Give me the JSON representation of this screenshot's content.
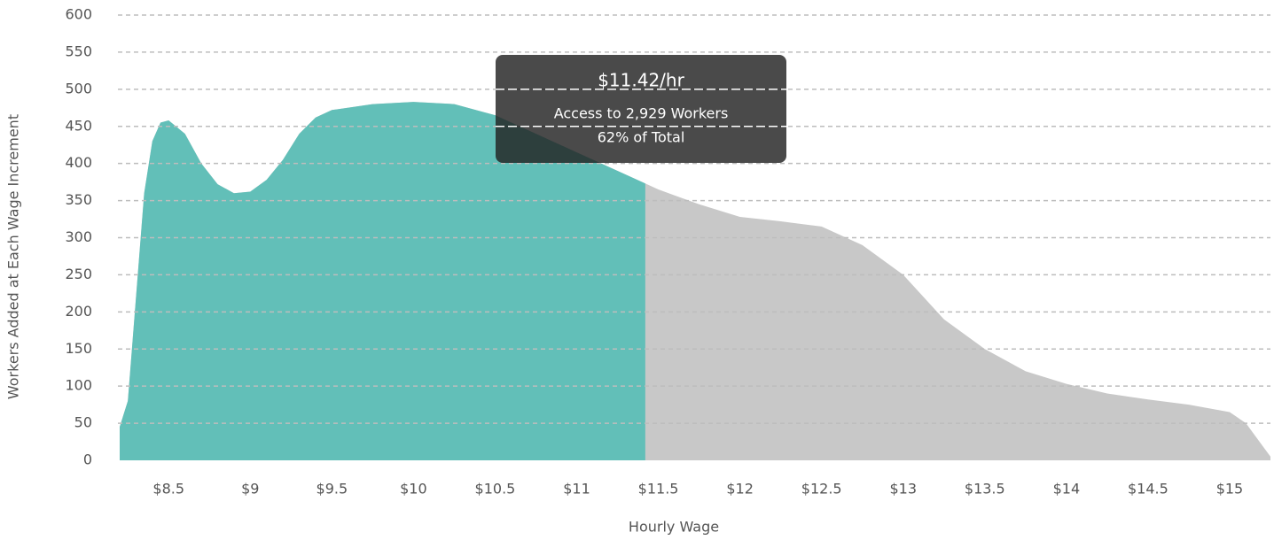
{
  "chart_data": {
    "type": "area",
    "y_label": "Workers Added at Each Wage Increment",
    "x_label": "Hourly Wage",
    "x": [
      8.2,
      8.25,
      8.3,
      8.35,
      8.4,
      8.45,
      8.5,
      8.6,
      8.7,
      8.8,
      8.9,
      9.0,
      9.1,
      9.2,
      9.3,
      9.4,
      9.5,
      9.75,
      10.0,
      10.25,
      10.5,
      10.75,
      11.0,
      11.25,
      11.42,
      11.5,
      11.75,
      12.0,
      12.25,
      12.5,
      12.75,
      13.0,
      13.25,
      13.5,
      13.75,
      14.0,
      14.25,
      14.5,
      14.75,
      15.0,
      15.1,
      15.2,
      15.25
    ],
    "values": [
      45,
      80,
      220,
      360,
      430,
      455,
      458,
      440,
      400,
      372,
      360,
      362,
      378,
      405,
      440,
      462,
      472,
      480,
      483,
      480,
      465,
      440,
      415,
      390,
      373,
      365,
      345,
      328,
      322,
      315,
      290,
      250,
      190,
      150,
      120,
      103,
      90,
      82,
      75,
      65,
      50,
      20,
      5
    ],
    "selected_x": 11.42,
    "selected_color": "#62bfb8",
    "color": "#c8c8c8",
    "xlim": [
      8.2,
      15.25
    ],
    "ylim": [
      0,
      600
    ],
    "xticks": [
      {
        "value": 8.5,
        "label": "$8.5"
      },
      {
        "value": 9,
        "label": "$9"
      },
      {
        "value": 9.5,
        "label": "$9.5"
      },
      {
        "value": 10,
        "label": "$10"
      },
      {
        "value": 10.5,
        "label": "$10.5"
      },
      {
        "value": 11,
        "label": "$11"
      },
      {
        "value": 11.5,
        "label": "$11.5"
      },
      {
        "value": 12,
        "label": "$12"
      },
      {
        "value": 12.5,
        "label": "$12.5"
      },
      {
        "value": 13,
        "label": "$13"
      },
      {
        "value": 13.5,
        "label": "$13.5"
      },
      {
        "value": 14,
        "label": "$14"
      },
      {
        "value": 14.5,
        "label": "$14.5"
      },
      {
        "value": 15,
        "label": "$15"
      }
    ],
    "yticks": [
      0,
      50,
      100,
      150,
      200,
      250,
      300,
      350,
      400,
      450,
      500,
      550,
      600
    ],
    "grid": true,
    "tooltip": {
      "title": "$11.42/hr",
      "lines": [
        "Access to 2,929 Workers",
        "62% of Total"
      ]
    }
  }
}
